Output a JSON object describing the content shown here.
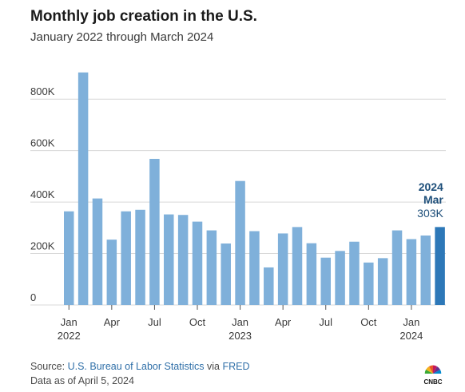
{
  "header": {
    "title": "Monthly job creation in the U.S.",
    "subtitle": "January 2022 through March 2024"
  },
  "footer": {
    "source_prefix": "Source:",
    "source_agency": "U.S. Bureau of Labor Statistics",
    "via": "via",
    "source_fred": "FRED",
    "data_as_of": "Data as of April 5, 2024"
  },
  "logo_text": "CNBC",
  "colors": {
    "bar": "#7fb0da",
    "bar_highlight": "#2d78b8",
    "annotation": "#1e4f7a",
    "grid": "#d8d8d8",
    "axis_text": "#3a3a3a"
  },
  "chart_data": {
    "type": "bar",
    "title": "Monthly job creation in the U.S.",
    "subtitle": "January 2022 through March 2024",
    "ylim": [
      0,
      900000
    ],
    "yticks": [
      0,
      200000,
      400000,
      600000,
      800000
    ],
    "ytick_labels": [
      "0",
      "200K",
      "400K",
      "600K",
      "800K"
    ],
    "grid": true,
    "categories": [
      "2022-01",
      "2022-02",
      "2022-03",
      "2022-04",
      "2022-05",
      "2022-06",
      "2022-07",
      "2022-08",
      "2022-09",
      "2022-10",
      "2022-11",
      "2022-12",
      "2023-01",
      "2023-02",
      "2023-03",
      "2023-04",
      "2023-05",
      "2023-06",
      "2023-07",
      "2023-08",
      "2023-09",
      "2023-10",
      "2023-11",
      "2023-12",
      "2024-01",
      "2024-02",
      "2024-03"
    ],
    "values": [
      364000,
      904000,
      414000,
      254000,
      364000,
      370000,
      568000,
      352000,
      350000,
      324000,
      290000,
      239000,
      482000,
      287000,
      146000,
      278000,
      303000,
      240000,
      184000,
      210000,
      246000,
      165000,
      182000,
      290000,
      256000,
      270000,
      303000
    ],
    "xtick_labels": [
      {
        "index": 0,
        "line1": "Jan",
        "line2": "2022"
      },
      {
        "index": 3,
        "line1": "Apr",
        "line2": ""
      },
      {
        "index": 6,
        "line1": "Jul",
        "line2": ""
      },
      {
        "index": 9,
        "line1": "Oct",
        "line2": ""
      },
      {
        "index": 12,
        "line1": "Jan",
        "line2": "2023"
      },
      {
        "index": 15,
        "line1": "Apr",
        "line2": ""
      },
      {
        "index": 18,
        "line1": "Jul",
        "line2": ""
      },
      {
        "index": 21,
        "line1": "Oct",
        "line2": ""
      },
      {
        "index": 24,
        "line1": "Jan",
        "line2": "2024"
      }
    ],
    "highlight_index": 26,
    "annotation": {
      "year": "2024",
      "month": "Mar",
      "value_label": "303K"
    }
  }
}
